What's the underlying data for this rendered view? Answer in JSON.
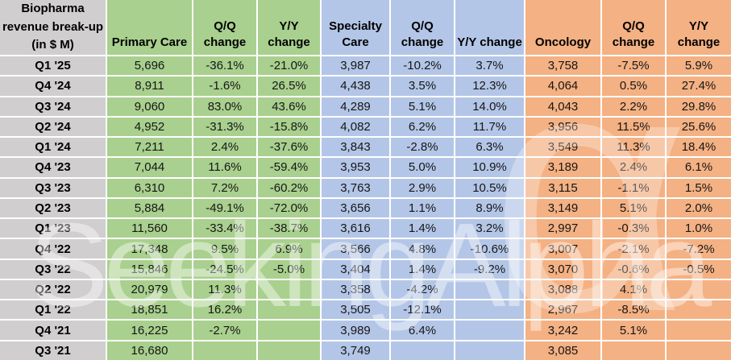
{
  "watermark": {
    "text": "SeekingAlpha",
    "alpha": "α"
  },
  "colors": {
    "primary_care_fill": "#a9d08e",
    "specialty_care_fill": "#b4c6e7",
    "oncology_fill": "#f4b183",
    "label_fill": "#d0cece",
    "grid_border": "#ffffff"
  },
  "table": {
    "header": {
      "row_label": [
        "Biopharma",
        "revenue break-up",
        "(in $ M)"
      ],
      "primary_care": "Primary Care",
      "specialty_care": "Specialty Care",
      "oncology": "Oncology",
      "qq": "Q/Q change",
      "yy": "Y/Y change"
    },
    "rows": [
      {
        "label": "Q1 '25",
        "pc": "5,696",
        "pc_qq": "-36.1%",
        "pc_yy": "-21.0%",
        "sc": "3,987",
        "sc_qq": "-10.2%",
        "sc_yy": "3.7%",
        "on": "3,758",
        "on_qq": "-7.5%",
        "on_yy": "5.9%"
      },
      {
        "label": "Q4 '24",
        "pc": "8,911",
        "pc_qq": "-1.6%",
        "pc_yy": "26.5%",
        "sc": "4,438",
        "sc_qq": "3.5%",
        "sc_yy": "12.3%",
        "on": "4,064",
        "on_qq": "0.5%",
        "on_yy": "27.4%"
      },
      {
        "label": "Q3 '24",
        "pc": "9,060",
        "pc_qq": "83.0%",
        "pc_yy": "43.6%",
        "sc": "4,289",
        "sc_qq": "5.1%",
        "sc_yy": "14.0%",
        "on": "4,043",
        "on_qq": "2.2%",
        "on_yy": "29.8%"
      },
      {
        "label": "Q2 '24",
        "pc": "4,952",
        "pc_qq": "-31.3%",
        "pc_yy": "-15.8%",
        "sc": "4,082",
        "sc_qq": "6.2%",
        "sc_yy": "11.7%",
        "on": "3,956",
        "on_qq": "11.5%",
        "on_yy": "25.6%"
      },
      {
        "label": "Q1 '24",
        "pc": "7,211",
        "pc_qq": "2.4%",
        "pc_yy": "-37.6%",
        "sc": "3,843",
        "sc_qq": "-2.8%",
        "sc_yy": "6.3%",
        "on": "3,549",
        "on_qq": "11.3%",
        "on_yy": "18.4%"
      },
      {
        "label": "Q4 '23",
        "pc": "7,044",
        "pc_qq": "11.6%",
        "pc_yy": "-59.4%",
        "sc": "3,953",
        "sc_qq": "5.0%",
        "sc_yy": "10.9%",
        "on": "3,189",
        "on_qq": "2.4%",
        "on_yy": "6.1%"
      },
      {
        "label": "Q3 '23",
        "pc": "6,310",
        "pc_qq": "7.2%",
        "pc_yy": "-60.2%",
        "sc": "3,763",
        "sc_qq": "2.9%",
        "sc_yy": "10.5%",
        "on": "3,115",
        "on_qq": "-1.1%",
        "on_yy": "1.5%"
      },
      {
        "label": "Q2 '23",
        "pc": "5,884",
        "pc_qq": "-49.1%",
        "pc_yy": "-72.0%",
        "sc": "3,656",
        "sc_qq": "1.1%",
        "sc_yy": "8.9%",
        "on": "3,149",
        "on_qq": "5.1%",
        "on_yy": "2.0%"
      },
      {
        "label": "Q1 '23",
        "pc": "11,560",
        "pc_qq": "-33.4%",
        "pc_yy": "-38.7%",
        "sc": "3,616",
        "sc_qq": "1.4%",
        "sc_yy": "3.2%",
        "on": "2,997",
        "on_qq": "-0.3%",
        "on_yy": "1.0%"
      },
      {
        "label": "Q4 '22",
        "pc": "17,348",
        "pc_qq": "9.5%",
        "pc_yy": "6.9%",
        "sc": "3,566",
        "sc_qq": "4.8%",
        "sc_yy": "-10.6%",
        "on": "3,007",
        "on_qq": "-2.1%",
        "on_yy": "-7.2%"
      },
      {
        "label": "Q3 '22",
        "pc": "15,846",
        "pc_qq": "-24.5%",
        "pc_yy": "-5.0%",
        "sc": "3,404",
        "sc_qq": "1.4%",
        "sc_yy": "-9.2%",
        "on": "3,070",
        "on_qq": "-0.6%",
        "on_yy": "-0.5%"
      },
      {
        "label": "Q2 '22",
        "pc": "20,979",
        "pc_qq": "11.3%",
        "pc_yy": "",
        "sc": "3,358",
        "sc_qq": "-4.2%",
        "sc_yy": "",
        "on": "3,088",
        "on_qq": "4.1%",
        "on_yy": ""
      },
      {
        "label": "Q1 '22",
        "pc": "18,851",
        "pc_qq": "16.2%",
        "pc_yy": "",
        "sc": "3,505",
        "sc_qq": "-12.1%",
        "sc_yy": "",
        "on": "2,967",
        "on_qq": "-8.5%",
        "on_yy": ""
      },
      {
        "label": "Q4 '21",
        "pc": "16,225",
        "pc_qq": "-2.7%",
        "pc_yy": "",
        "sc": "3,989",
        "sc_qq": "6.4%",
        "sc_yy": "",
        "on": "3,242",
        "on_qq": "5.1%",
        "on_yy": ""
      },
      {
        "label": "Q3 '21",
        "pc": "16,680",
        "pc_qq": "",
        "pc_yy": "",
        "sc": "3,749",
        "sc_qq": "",
        "sc_yy": "",
        "on": "3,085",
        "on_qq": "",
        "on_yy": ""
      }
    ]
  },
  "chart_data": {
    "type": "table",
    "title": "Biopharma revenue break-up (in $ M)",
    "quarters": [
      "Q1 '25",
      "Q4 '24",
      "Q3 '24",
      "Q2 '24",
      "Q1 '24",
      "Q4 '23",
      "Q3 '23",
      "Q2 '23",
      "Q1 '23",
      "Q4 '22",
      "Q3 '22",
      "Q2 '22",
      "Q1 '22",
      "Q4 '21",
      "Q3 '21"
    ],
    "columns": [
      "Primary Care",
      "Q/Q change",
      "Y/Y change",
      "Specialty Care",
      "Q/Q change",
      "Y/Y change",
      "Oncology",
      "Q/Q change",
      "Y/Y change"
    ],
    "series": [
      {
        "name": "Primary Care",
        "revenue_musd": [
          5696,
          8911,
          9060,
          4952,
          7211,
          7044,
          6310,
          5884,
          11560,
          17348,
          15846,
          20979,
          18851,
          16225,
          16680
        ],
        "qoq_change_pct": [
          -36.1,
          -1.6,
          83.0,
          -31.3,
          2.4,
          11.6,
          7.2,
          -49.1,
          -33.4,
          9.5,
          -24.5,
          11.3,
          16.2,
          -2.7,
          null
        ],
        "yoy_change_pct": [
          -21.0,
          26.5,
          43.6,
          -15.8,
          -37.6,
          -59.4,
          -60.2,
          -72.0,
          -38.7,
          6.9,
          -5.0,
          null,
          null,
          null,
          null
        ]
      },
      {
        "name": "Specialty Care",
        "revenue_musd": [
          3987,
          4438,
          4289,
          4082,
          3843,
          3953,
          3763,
          3656,
          3616,
          3566,
          3404,
          3358,
          3505,
          3989,
          3749
        ],
        "qoq_change_pct": [
          -10.2,
          3.5,
          5.1,
          6.2,
          -2.8,
          5.0,
          2.9,
          1.1,
          1.4,
          4.8,
          1.4,
          -4.2,
          -12.1,
          6.4,
          null
        ],
        "yoy_change_pct": [
          3.7,
          12.3,
          14.0,
          11.7,
          6.3,
          10.9,
          10.5,
          8.9,
          3.2,
          -10.6,
          -9.2,
          null,
          null,
          null,
          null
        ]
      },
      {
        "name": "Oncology",
        "revenue_musd": [
          3758,
          4064,
          4043,
          3956,
          3549,
          3189,
          3115,
          3149,
          2997,
          3007,
          3070,
          3088,
          2967,
          3242,
          3085
        ],
        "qoq_change_pct": [
          -7.5,
          0.5,
          2.2,
          11.5,
          11.3,
          2.4,
          -1.1,
          5.1,
          -0.3,
          -2.1,
          -0.6,
          4.1,
          -8.5,
          5.1,
          null
        ],
        "yoy_change_pct": [
          5.9,
          27.4,
          29.8,
          25.6,
          18.4,
          6.1,
          1.5,
          2.0,
          1.0,
          -7.2,
          -0.5,
          null,
          null,
          null,
          null
        ]
      }
    ]
  }
}
